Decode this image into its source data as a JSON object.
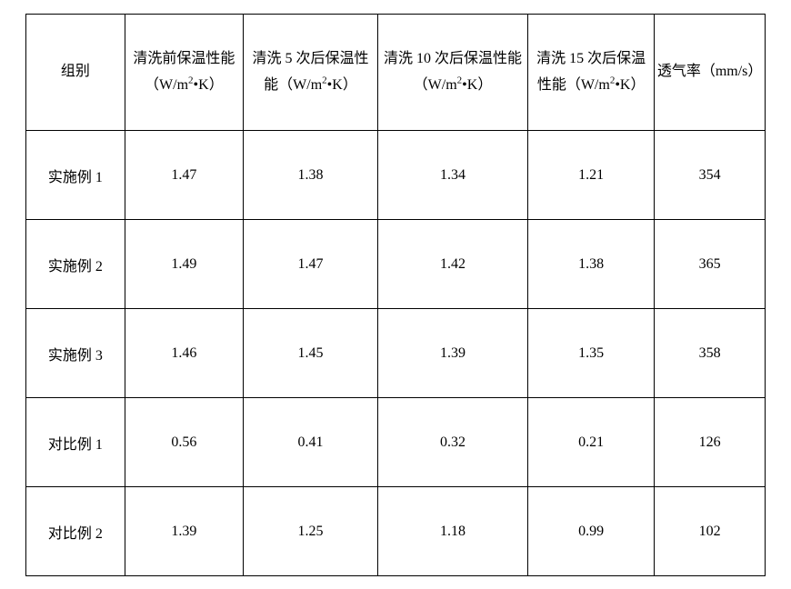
{
  "table": {
    "type": "table",
    "columns": [
      {
        "label": "组别",
        "width": "12.5%"
      },
      {
        "label_html": "清洗前保温性能（W/m<sup>2</sup>•K）",
        "width": "15%"
      },
      {
        "label_html": "清洗 5 次后保温性能（W/m<sup>2</sup>•K）",
        "width": "17%"
      },
      {
        "label_html": "清洗 10 次后保温性能（W/m<sup>2</sup>•K）",
        "width": "19%"
      },
      {
        "label_html": "清洗 15 次后保温性能（W/m<sup>2</sup>•K）",
        "width": "16%"
      },
      {
        "label_html": "透气率（mm/s）",
        "width": "14%"
      }
    ],
    "rows": [
      [
        "实施例 1",
        "1.47",
        "1.38",
        "1.34",
        "1.21",
        "354"
      ],
      [
        "实施例 2",
        "1.49",
        "1.47",
        "1.42",
        "1.38",
        "365"
      ],
      [
        "实施例 3",
        "1.46",
        "1.45",
        "1.39",
        "1.35",
        "358"
      ],
      [
        "对比例 1",
        "0.56",
        "0.41",
        "0.32",
        "0.21",
        "126"
      ],
      [
        "对比例 2",
        "1.39",
        "1.25",
        "1.18",
        "0.99",
        "102"
      ]
    ],
    "border_color": "#000000",
    "background_color": "#ffffff",
    "font_family": "SimSun",
    "font_size": 16,
    "text_color": "#000000"
  }
}
